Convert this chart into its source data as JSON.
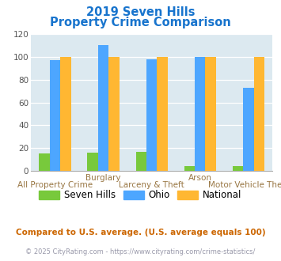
{
  "title_line1": "2019 Seven Hills",
  "title_line2": "Property Crime Comparison",
  "title_color": "#1874CD",
  "categories": [
    "All Property Crime",
    "Burglary",
    "Larceny & Theft",
    "Arson",
    "Motor Vehicle Theft"
  ],
  "cat_top": [
    "",
    "Burglary",
    "",
    "Arson",
    ""
  ],
  "cat_bottom": [
    "All Property Crime",
    "",
    "Larceny & Theft",
    "",
    "Motor Vehicle Theft"
  ],
  "seven_hills": [
    15,
    16,
    17,
    4,
    4
  ],
  "ohio": [
    97,
    110,
    98,
    100,
    73
  ],
  "national": [
    100,
    100,
    100,
    100,
    100
  ],
  "seven_hills_color": "#78c93c",
  "ohio_color": "#4da6ff",
  "national_color": "#ffb732",
  "ylim": [
    0,
    120
  ],
  "yticks": [
    0,
    20,
    40,
    60,
    80,
    100,
    120
  ],
  "bg_color": "#dce9f0",
  "fig_bg": "#ffffff",
  "legend_labels": [
    "Seven Hills",
    "Ohio",
    "National"
  ],
  "footnote1": "Compared to U.S. average. (U.S. average equals 100)",
  "footnote2": "© 2025 CityRating.com - https://www.cityrating.com/crime-statistics/",
  "footnote1_color": "#cc6600",
  "footnote2_color": "#9999aa"
}
